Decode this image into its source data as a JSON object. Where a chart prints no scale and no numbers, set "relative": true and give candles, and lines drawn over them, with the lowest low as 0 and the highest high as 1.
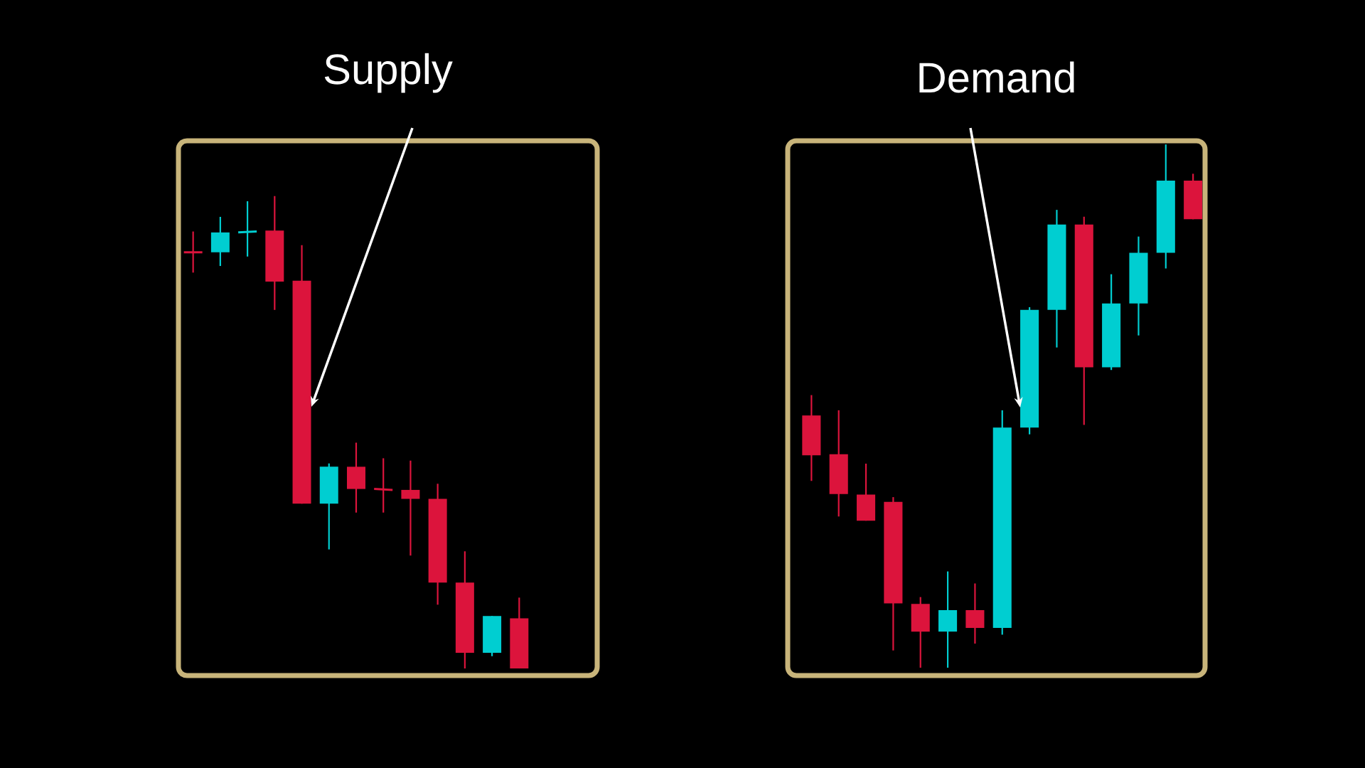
{
  "chart_data": [
    {
      "type": "candlestick",
      "title": "Supply",
      "relative": true,
      "categories": [
        null,
        null,
        null,
        null,
        null,
        null,
        null,
        null,
        null,
        null,
        null,
        null,
        null
      ],
      "ohlc": [
        [
          0.881,
          0.925,
          0.838,
          0.881
        ],
        [
          0.881,
          0.956,
          0.852,
          0.923
        ],
        [
          0.923,
          0.989,
          0.872,
          0.925
        ],
        [
          0.927,
          1,
          0.759,
          0.819
        ],
        [
          0.821,
          0.896,
          0.349,
          0.349
        ],
        [
          0.349,
          0.434,
          0.252,
          0.427
        ],
        [
          0.427,
          0.478,
          0.33,
          0.38
        ],
        [
          0.38,
          0.445,
          0.33,
          0.378
        ],
        [
          0.378,
          0.44,
          0.239,
          0.359
        ],
        [
          0.359,
          0.391,
          0.135,
          0.182
        ],
        [
          0.182,
          0.248,
          0,
          0.033
        ],
        [
          0.033,
          0.111,
          0.026,
          0.111
        ],
        [
          0.106,
          0.15,
          0,
          0
        ]
      ],
      "colors": [
        "#dc143c",
        "#00ced1",
        "#00ced1",
        "#dc143c",
        "#dc143c",
        "#00ced1",
        "#dc143c",
        "#dc143c",
        "#dc143c",
        "#dc143c",
        "#dc143c",
        "#00ced1",
        "#dc143c"
      ]
    },
    {
      "type": "candlestick",
      "title": "Demand",
      "relative": true,
      "categories": [
        null,
        null,
        null,
        null,
        null,
        null,
        null,
        null,
        null,
        null,
        null,
        null,
        null,
        null,
        null
      ],
      "ohlc": [
        [
          0.482,
          0.521,
          0.357,
          0.406
        ],
        [
          0.408,
          0.492,
          0.289,
          0.332
        ],
        [
          0.331,
          0.39,
          0.281,
          0.281
        ],
        [
          0.317,
          0.326,
          0.033,
          0.123
        ],
        [
          0.122,
          0.135,
          0,
          0.069
        ],
        [
          0.069,
          0.184,
          0,
          0.11
        ],
        [
          0.11,
          0.161,
          0.046,
          0.076
        ],
        [
          0.076,
          0.492,
          0.063,
          0.459
        ],
        [
          0.459,
          0.689,
          0.446,
          0.684
        ],
        [
          0.684,
          0.875,
          0.612,
          0.847
        ],
        [
          0.847,
          0.862,
          0.464,
          0.574
        ],
        [
          0.574,
          0.752,
          0.569,
          0.696
        ],
        [
          0.696,
          0.824,
          0.635,
          0.793
        ],
        [
          0.793,
          1,
          0.763,
          0.931
        ],
        [
          0.931,
          0.944,
          0.857,
          0.857
        ]
      ],
      "colors": [
        "#dc143c",
        "#dc143c",
        "#dc143c",
        "#dc143c",
        "#dc143c",
        "#00ced1",
        "#dc143c",
        "#00ced1",
        "#00ced1",
        "#00ced1",
        "#dc143c",
        "#00ced1",
        "#00ced1",
        "#00ced1",
        "#dc143c"
      ]
    }
  ]
}
